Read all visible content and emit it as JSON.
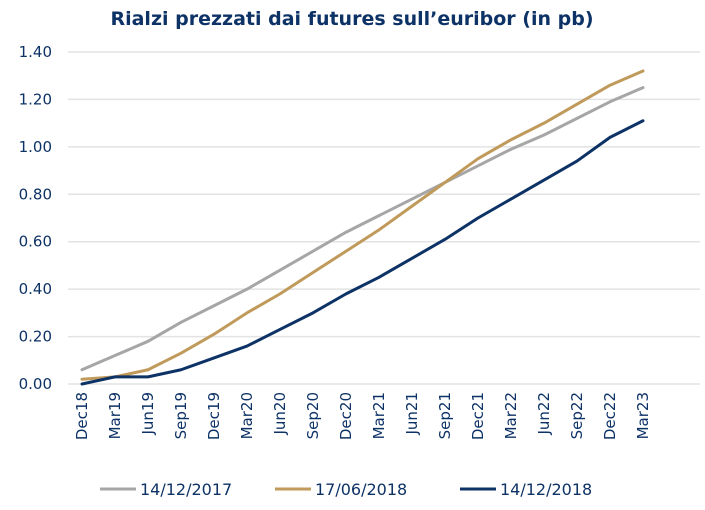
{
  "chart_data": {
    "type": "line",
    "title": "Rialzi prezzati dai futures sull’euribor (in pb)",
    "xlabel": "",
    "ylabel": "",
    "ylim": [
      0,
      1.4
    ],
    "yticks": [
      "0.00",
      "0.20",
      "0.40",
      "0.60",
      "0.80",
      "1.00",
      "1.20",
      "1.40"
    ],
    "grid": true,
    "legend": "bottom",
    "categories": [
      "Dec18",
      "Mar19",
      "Jun19",
      "Sep19",
      "Dec19",
      "Mar20",
      "Jun20",
      "Sep20",
      "Dec20",
      "Mar21",
      "Jun21",
      "Sep21",
      "Dec21",
      "Mar22",
      "Jun22",
      "Sep22",
      "Dec22",
      "Mar23"
    ],
    "series": [
      {
        "name": "14/12/2017",
        "color": "#a6a6a6",
        "values": [
          0.06,
          0.12,
          0.18,
          0.26,
          0.33,
          0.4,
          0.48,
          0.56,
          0.64,
          0.71,
          0.78,
          0.85,
          0.92,
          0.99,
          1.05,
          1.12,
          1.19,
          1.25
        ]
      },
      {
        "name": "17/06/2018",
        "color": "#c09a5b",
        "values": [
          0.02,
          0.03,
          0.06,
          0.13,
          0.21,
          0.3,
          0.38,
          0.47,
          0.56,
          0.65,
          0.75,
          0.85,
          0.95,
          1.03,
          1.1,
          1.18,
          1.26,
          1.32
        ]
      },
      {
        "name": "14/12/2018",
        "color": "#0d3266",
        "values": [
          0.0,
          0.03,
          0.03,
          0.06,
          0.11,
          0.16,
          0.23,
          0.3,
          0.38,
          0.45,
          0.53,
          0.61,
          0.7,
          0.78,
          0.86,
          0.94,
          1.04,
          1.11
        ]
      }
    ]
  }
}
